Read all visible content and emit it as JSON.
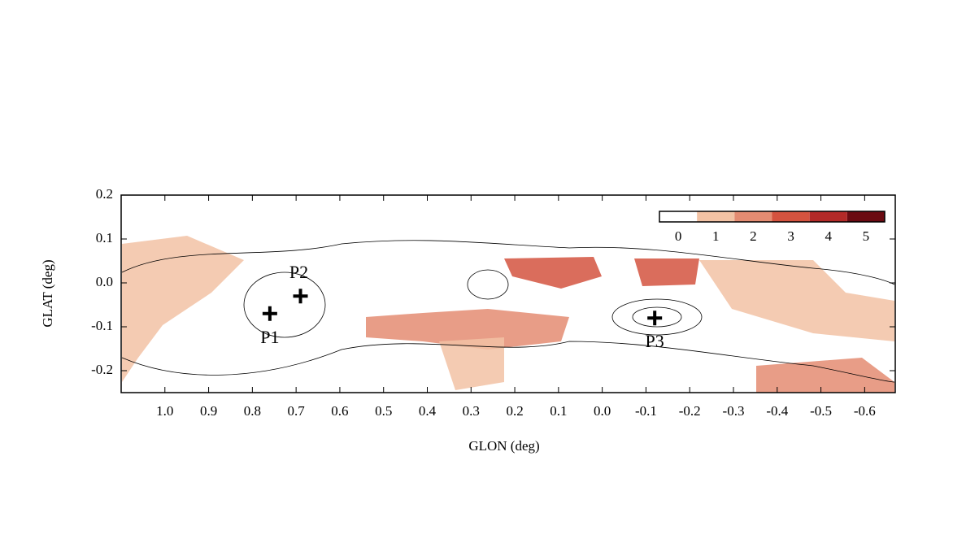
{
  "chart_data": {
    "type": "heatmap",
    "x_label": "GLON (deg)",
    "y_label": "GLAT (deg)",
    "xlim": [
      1.1,
      -0.67
    ],
    "ylim": [
      -0.25,
      0.2
    ],
    "xticks": [
      {
        "value": 1,
        "label": "1.0"
      },
      0.9,
      0.8,
      0.7,
      0.6,
      0.5,
      0.4,
      0.3,
      0.2,
      0.1,
      {
        "value": 0,
        "label": "0.0"
      },
      -0.1,
      -0.2,
      -0.3,
      -0.4,
      -0.5,
      -0.6
    ],
    "yticks": [
      0.2,
      0.1,
      {
        "value": 0,
        "label": "0.0"
      },
      -0.1,
      -0.2
    ],
    "colorbar": {
      "labels": [
        0,
        1,
        2,
        3,
        4,
        5
      ],
      "colors": [
        "#ffffff",
        "#f2c2a4",
        "#e48c72",
        "#d4533f",
        "#b32a28",
        "#6b0b12"
      ]
    },
    "annotations": [
      {
        "label": "P1",
        "x": 0.76,
        "y": -0.07
      },
      {
        "label": "P2",
        "x": 0.69,
        "y": -0.03
      },
      {
        "label": "P3",
        "x": -0.12,
        "y": -0.08
      }
    ]
  }
}
